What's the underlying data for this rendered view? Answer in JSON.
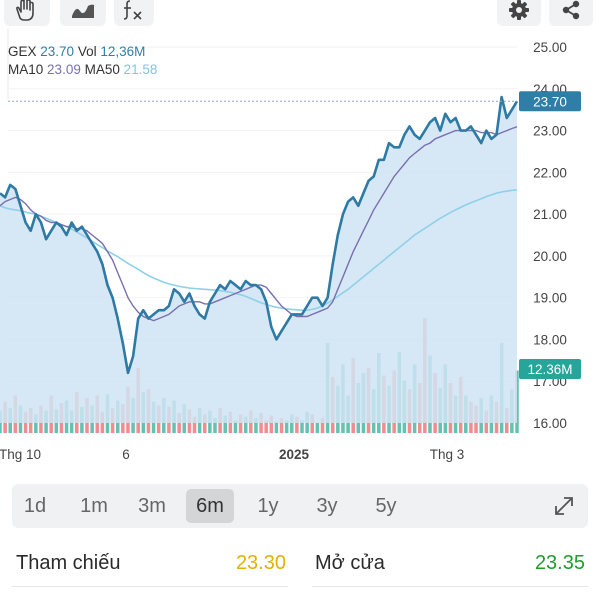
{
  "toolbar": {
    "left_tools": [
      "hand-icon",
      "draw-line-icon",
      "formula-icon"
    ],
    "right_tools": [
      "settings-gear-icon",
      "share-icon"
    ]
  },
  "legend": {
    "symbol": "GEX",
    "price": "23.70",
    "vol_label": "Vol",
    "vol_value": "12,36M",
    "ma10_label": "MA10",
    "ma10_value": "23.09",
    "ma50_label": "MA50",
    "ma50_value": "21.58"
  },
  "price_tag": "23.70",
  "volume_tag": "12.36M",
  "colors": {
    "price_line": "#2e7aa5",
    "price_fill": "#cfe4f3",
    "ma10": "#7a6fb0",
    "ma50": "#8fd0ea",
    "volume_up": "#5dbfae",
    "volume_down": "#f0868a",
    "price_tag_bg": "#2f7ea8",
    "volume_tag_bg": "#26a69a",
    "ref_value": "#e3b100",
    "open_value": "#1f9e2a",
    "active_tab_bg": "#d4d5d7"
  },
  "chart_data": {
    "type": "line",
    "symbol": "GEX",
    "x_tick_labels": [
      "Thg 10",
      "6",
      "2025",
      "Thg 3"
    ],
    "y_tick_labels": [
      "25.00",
      "24.00",
      "23.00",
      "22.00",
      "21.00",
      "20.00",
      "19.00",
      "18.00",
      "17.00",
      "16.00"
    ],
    "ylim": [
      15.9,
      25.3
    ],
    "current_price": 23.7,
    "current_volume": "12.36M",
    "price": [
      21.5,
      21.4,
      21.7,
      21.6,
      21.2,
      20.8,
      20.6,
      21.0,
      20.8,
      20.4,
      20.6,
      20.8,
      20.7,
      20.5,
      20.8,
      20.6,
      20.7,
      20.5,
      20.3,
      20.1,
      19.8,
      19.3,
      19.0,
      18.5,
      17.9,
      17.2,
      17.6,
      18.5,
      18.7,
      18.5,
      18.6,
      18.7,
      18.7,
      18.8,
      19.2,
      19.1,
      18.9,
      19.1,
      18.8,
      18.6,
      18.5,
      18.9,
      19.1,
      19.3,
      19.2,
      19.4,
      19.3,
      19.2,
      19.4,
      19.3,
      19.3,
      19.2,
      18.9,
      18.3,
      18.0,
      18.2,
      18.4,
      18.6,
      18.6,
      18.6,
      18.8,
      19.0,
      19.0,
      18.8,
      19.0,
      19.8,
      20.5,
      21.0,
      21.3,
      21.4,
      21.2,
      21.5,
      21.8,
      21.9,
      22.3,
      22.3,
      22.7,
      22.6,
      22.6,
      22.9,
      23.1,
      22.9,
      22.8,
      23.0,
      23.2,
      23.3,
      23.0,
      23.4,
      23.2,
      23.3,
      23.0,
      23.0,
      23.1,
      22.9,
      22.7,
      23.0,
      22.8,
      22.9,
      23.8,
      23.3,
      23.5,
      23.7
    ],
    "series": [
      {
        "name": "MA10",
        "values": [
          21.2,
          21.3,
          21.35,
          21.4,
          21.35,
          21.25,
          21.1,
          21.0,
          20.95,
          20.85,
          20.8,
          20.8,
          20.75,
          20.7,
          20.7,
          20.65,
          20.65,
          20.6,
          20.5,
          20.4,
          20.3,
          20.1,
          19.9,
          19.6,
          19.3,
          19.0,
          18.8,
          18.65,
          18.55,
          18.5,
          18.45,
          18.5,
          18.55,
          18.6,
          18.7,
          18.8,
          18.85,
          18.9,
          18.9,
          18.9,
          18.85,
          18.85,
          18.9,
          18.95,
          19.0,
          19.05,
          19.1,
          19.15,
          19.2,
          19.25,
          19.3,
          19.3,
          19.25,
          19.1,
          18.95,
          18.8,
          18.7,
          18.6,
          18.55,
          18.55,
          18.55,
          18.6,
          18.65,
          18.7,
          18.75,
          18.9,
          19.2,
          19.5,
          19.8,
          20.1,
          20.35,
          20.6,
          20.85,
          21.1,
          21.3,
          21.5,
          21.7,
          21.9,
          22.05,
          22.2,
          22.35,
          22.45,
          22.55,
          22.65,
          22.7,
          22.8,
          22.85,
          22.9,
          22.95,
          23.0,
          23.0,
          23.0,
          23.0,
          23.0,
          22.95,
          22.95,
          22.95,
          22.9,
          22.95,
          23.0,
          23.05,
          23.09
        ]
      },
      {
        "name": "MA50",
        "values": [
          21.2,
          21.15,
          21.12,
          21.1,
          21.08,
          21.05,
          21.02,
          21.0,
          20.95,
          20.9,
          20.85,
          20.8,
          20.75,
          20.7,
          20.64,
          20.57,
          20.5,
          20.43,
          20.35,
          20.27,
          20.2,
          20.12,
          20.05,
          19.98,
          19.9,
          19.82,
          19.75,
          19.68,
          19.6,
          19.53,
          19.47,
          19.42,
          19.37,
          19.33,
          19.3,
          19.27,
          19.25,
          19.23,
          19.22,
          19.21,
          19.2,
          19.19,
          19.18,
          19.17,
          19.15,
          19.13,
          19.1,
          19.07,
          19.03,
          18.98,
          18.93,
          18.88,
          18.84,
          18.8,
          18.77,
          18.75,
          18.73,
          18.72,
          18.71,
          18.7,
          18.7,
          18.72,
          18.75,
          18.8,
          18.87,
          18.95,
          19.03,
          19.12,
          19.2,
          19.3,
          19.4,
          19.5,
          19.6,
          19.7,
          19.8,
          19.9,
          20.0,
          20.1,
          20.2,
          20.3,
          20.4,
          20.5,
          20.58,
          20.66,
          20.74,
          20.82,
          20.9,
          20.97,
          21.04,
          21.1,
          21.16,
          21.22,
          21.27,
          21.32,
          21.37,
          21.42,
          21.46,
          21.5,
          21.53,
          21.55,
          21.57,
          21.58
        ]
      }
    ],
    "volume_relative": [
      0.18,
      0.25,
      0.2,
      0.3,
      0.22,
      0.17,
      0.2,
      0.15,
      0.22,
      0.18,
      0.3,
      0.19,
      0.24,
      0.26,
      0.18,
      0.33,
      0.21,
      0.28,
      0.22,
      0.3,
      0.17,
      0.31,
      0.2,
      0.26,
      0.23,
      0.37,
      0.28,
      0.52,
      0.33,
      0.35,
      0.25,
      0.22,
      0.28,
      0.21,
      0.26,
      0.16,
      0.23,
      0.19,
      0.13,
      0.2,
      0.15,
      0.18,
      0.12,
      0.2,
      0.14,
      0.17,
      0.1,
      0.15,
      0.13,
      0.18,
      0.12,
      0.16,
      0.1,
      0.14,
      0.09,
      0.12,
      0.1,
      0.15,
      0.13,
      0.1,
      0.17,
      0.15,
      0.08,
      0.12,
      0.72,
      0.45,
      0.38,
      0.55,
      0.3,
      0.6,
      0.4,
      0.48,
      0.52,
      0.35,
      0.64,
      0.46,
      0.38,
      0.5,
      0.65,
      0.42,
      0.35,
      0.55,
      0.4,
      0.92,
      0.62,
      0.48,
      0.36,
      0.55,
      0.4,
      0.3,
      0.45,
      0.3,
      0.25,
      0.22,
      0.28,
      0.18,
      0.3,
      0.25,
      0.72,
      0.2,
      0.35,
      0.5
    ],
    "volume_direction": [
      "u",
      "d",
      "u",
      "d",
      "u",
      "d",
      "d",
      "u",
      "d",
      "u",
      "d",
      "u",
      "d",
      "u",
      "u",
      "d",
      "u",
      "d",
      "u",
      "d",
      "d",
      "u",
      "d",
      "u",
      "d",
      "d",
      "u",
      "d",
      "u",
      "d",
      "u",
      "d",
      "u",
      "d",
      "u",
      "d",
      "u",
      "d",
      "d",
      "u",
      "d",
      "u",
      "u",
      "d",
      "u",
      "d",
      "u",
      "d",
      "u",
      "d",
      "u",
      "d",
      "d",
      "d",
      "u",
      "d",
      "u",
      "u",
      "d",
      "u",
      "u",
      "d",
      "u",
      "d",
      "u",
      "d",
      "u",
      "u",
      "u",
      "d",
      "u",
      "u",
      "d",
      "u",
      "u",
      "d",
      "u",
      "d",
      "u",
      "u",
      "d",
      "u",
      "d",
      "d",
      "u",
      "d",
      "u",
      "u",
      "d",
      "u",
      "d",
      "u",
      "d",
      "d",
      "u",
      "d",
      "u",
      "d",
      "u",
      "d",
      "u",
      "u"
    ]
  },
  "time_tabs": [
    {
      "label": "1d",
      "active": false
    },
    {
      "label": "1m",
      "active": false
    },
    {
      "label": "3m",
      "active": false
    },
    {
      "label": "6m",
      "active": true
    },
    {
      "label": "1y",
      "active": false
    },
    {
      "label": "3y",
      "active": false
    },
    {
      "label": "5y",
      "active": false
    }
  ],
  "stats": {
    "ref_label": "Tham chiếu",
    "ref_value": "23.30",
    "open_label": "Mở cửa",
    "open_value": "23.35"
  }
}
